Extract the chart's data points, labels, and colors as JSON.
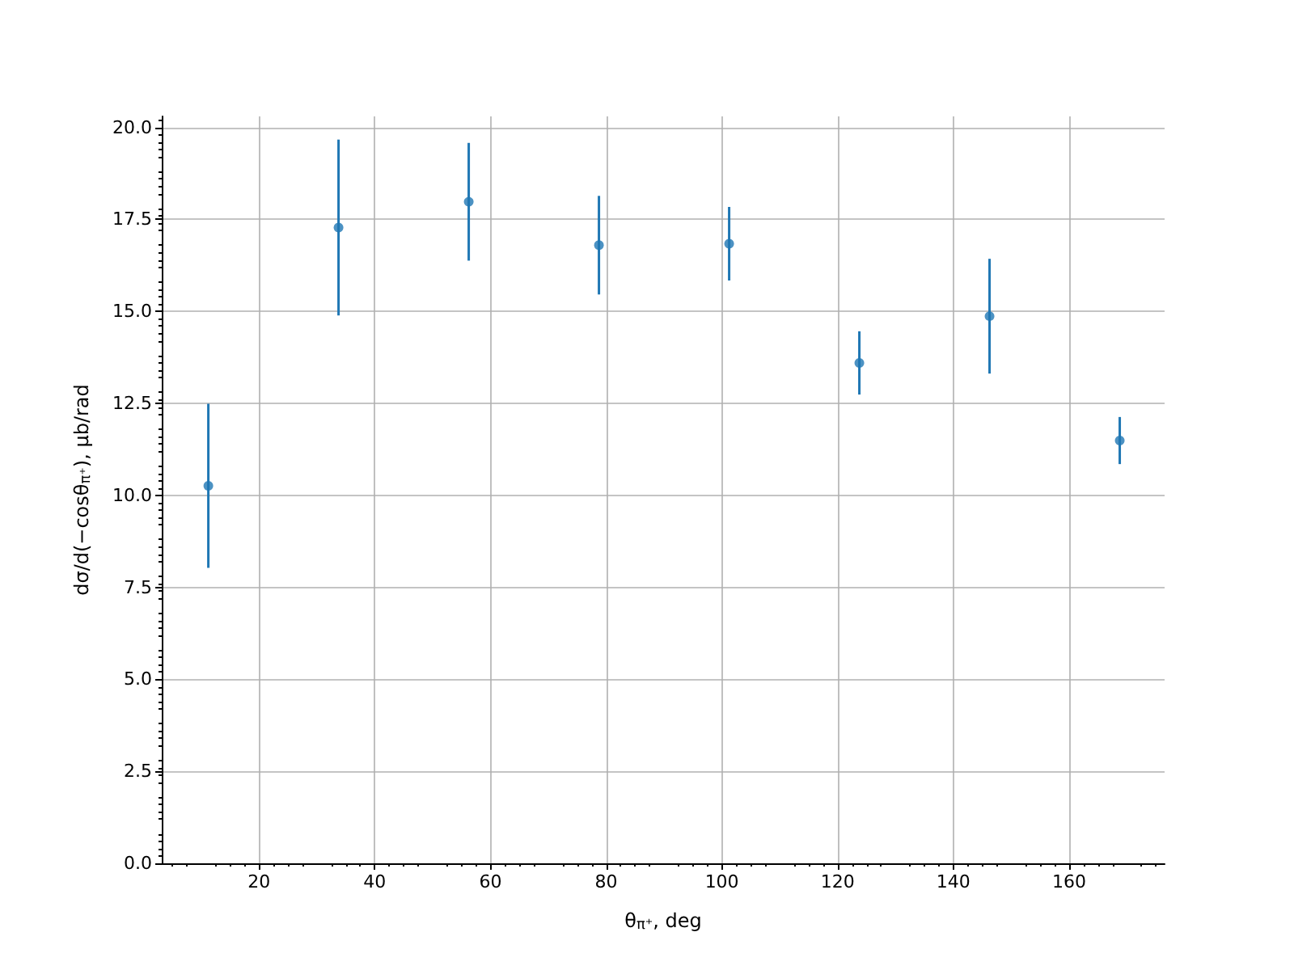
{
  "chart_data": {
    "type": "scatter",
    "xlabel": "θ$_{π⁺}$, deg",
    "ylabel": "dσ/d(−cosθ$_{π⁺}$), μb/rad",
    "x": [
      11.25,
      33.75,
      56.25,
      78.75,
      101.25,
      123.75,
      146.25,
      168.75
    ],
    "series": [
      {
        "color": "#1f77b4",
        "values": [
          10.26,
          17.28,
          17.98,
          16.8,
          16.84,
          13.6,
          14.87,
          11.49
        ],
        "errors": [
          2.23,
          2.39,
          1.6,
          1.34,
          1.0,
          0.86,
          1.56,
          0.64
        ]
      }
    ],
    "xlim": [
      3.2,
      176.5
    ],
    "xticks": [
      20,
      40,
      60,
      80,
      100,
      120,
      140,
      160
    ],
    "ylim": [
      0,
      20.3
    ],
    "yticks": [
      {
        "value": 0,
        "label": "0.0"
      },
      {
        "value": 2.5,
        "label": "2.5"
      },
      {
        "value": 5,
        "label": "5.0"
      },
      {
        "value": 7.5,
        "label": "7.5"
      },
      {
        "value": 10,
        "label": "10.0"
      },
      {
        "value": 12.5,
        "label": "12.5"
      },
      {
        "value": 15,
        "label": "15.0"
      },
      {
        "value": 17.5,
        "label": "17.5"
      },
      {
        "value": 20,
        "label": "20.0"
      }
    ],
    "grid": true,
    "marker": "circle"
  }
}
